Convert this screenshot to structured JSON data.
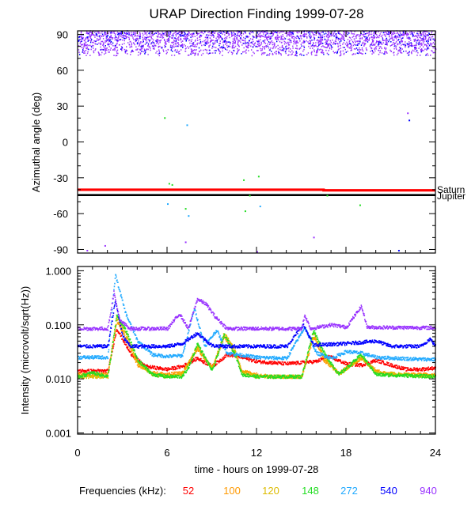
{
  "chart_data": [
    {
      "type": "scatter",
      "title": "URAP Direction Finding  1999-07-28",
      "ylabel": "Azimuthal angle (deg)",
      "xlim": [
        0,
        24
      ],
      "ylim": [
        -93,
        93
      ],
      "yticks": [
        90,
        60,
        30,
        0,
        -30,
        -60,
        -90
      ],
      "reference_lines": [
        {
          "name": "Saturn",
          "y": -40.5,
          "color": "#ff0000"
        },
        {
          "name": "Jupiter",
          "y": -44.5,
          "color": "#000000"
        }
      ],
      "series": [
        {
          "name": "940",
          "color": "#9933ff",
          "band": [
            72,
            93
          ]
        },
        {
          "name": "540",
          "color": "#0000ff",
          "band": [
            72,
            93
          ]
        }
      ],
      "scattered_points": [
        {
          "x": 6.1,
          "y": -35,
          "color": "#22dd22"
        },
        {
          "x": 6.3,
          "y": -36,
          "color": "#22dd22"
        },
        {
          "x": 6.0,
          "y": -52,
          "color": "#22aaff"
        },
        {
          "x": 5.8,
          "y": 20,
          "color": "#22dd22"
        },
        {
          "x": 7.3,
          "y": 14,
          "color": "#22aaff"
        },
        {
          "x": 7.2,
          "y": -56,
          "color": "#22dd22"
        },
        {
          "x": 7.4,
          "y": -62,
          "color": "#22aaff"
        },
        {
          "x": 11.1,
          "y": -32,
          "color": "#22dd22"
        },
        {
          "x": 12.1,
          "y": -29,
          "color": "#22dd22"
        },
        {
          "x": 11.5,
          "y": -45,
          "color": "#22dd22"
        },
        {
          "x": 11.2,
          "y": -58,
          "color": "#22dd22"
        },
        {
          "x": 12.2,
          "y": -54,
          "color": "#22aaff"
        },
        {
          "x": 16.7,
          "y": -45,
          "color": "#22dd22"
        },
        {
          "x": 18.9,
          "y": -53,
          "color": "#22dd22"
        },
        {
          "x": 22.1,
          "y": 24,
          "color": "#9933ff"
        },
        {
          "x": 22.2,
          "y": 18,
          "color": "#0000ff"
        },
        {
          "x": 15.8,
          "y": -80,
          "color": "#9933ff"
        },
        {
          "x": 7.2,
          "y": -84,
          "color": "#9933ff"
        },
        {
          "x": 1.8,
          "y": -87,
          "color": "#9933ff"
        },
        {
          "x": 0.6,
          "y": -91,
          "color": "#9933ff"
        },
        {
          "x": 12.0,
          "y": -92,
          "color": "#9933ff"
        },
        {
          "x": 21.5,
          "y": -91,
          "color": "#0000ff"
        }
      ]
    },
    {
      "type": "line",
      "xlabel": "time - hours on 1999-07-28",
      "ylabel": "Intensity (microvolt/sqrt(Hz))",
      "xlim": [
        0,
        24
      ],
      "ylim": [
        0.00095,
        1.2
      ],
      "yscale": "log",
      "xticks": [
        0,
        6,
        12,
        18,
        24
      ],
      "ytick_labels": [
        "1.000",
        "0.100",
        "0.010",
        "0.001"
      ],
      "ytick_values": [
        1.0,
        0.1,
        0.01,
        0.001
      ],
      "legend_label": "Frequencies (kHz):",
      "series": [
        {
          "name": "52",
          "color": "#ff0000",
          "points": [
            [
              0,
              0.014
            ],
            [
              2,
              0.014
            ],
            [
              2.6,
              0.085
            ],
            [
              3.5,
              0.03
            ],
            [
              4.5,
              0.017
            ],
            [
              6,
              0.015
            ],
            [
              7,
              0.017
            ],
            [
              8,
              0.024
            ],
            [
              9,
              0.017
            ],
            [
              10,
              0.028
            ],
            [
              11,
              0.025
            ],
            [
              12,
              0.021
            ],
            [
              13,
              0.02
            ],
            [
              14,
              0.019
            ],
            [
              15,
              0.02
            ],
            [
              16,
              0.021
            ],
            [
              16.8,
              0.026
            ],
            [
              18,
              0.019
            ],
            [
              19,
              0.018
            ],
            [
              20,
              0.022
            ],
            [
              21,
              0.018
            ],
            [
              22,
              0.015
            ],
            [
              23,
              0.015
            ],
            [
              24,
              0.016
            ]
          ]
        },
        {
          "name": "100",
          "color": "#ff9900",
          "points": [
            [
              0,
              0.012
            ],
            [
              2,
              0.012
            ],
            [
              2.6,
              0.12
            ],
            [
              3.3,
              0.05
            ],
            [
              4,
              0.018
            ],
            [
              5,
              0.013
            ],
            [
              6,
              0.012
            ],
            [
              7,
              0.013
            ],
            [
              8,
              0.035
            ],
            [
              9,
              0.016
            ],
            [
              9.8,
              0.06
            ],
            [
              10.5,
              0.03
            ],
            [
              11,
              0.014
            ],
            [
              12,
              0.012
            ],
            [
              13,
              0.011
            ],
            [
              15,
              0.011
            ],
            [
              15.8,
              0.06
            ],
            [
              16.5,
              0.022
            ],
            [
              17.5,
              0.013
            ],
            [
              19,
              0.024
            ],
            [
              20,
              0.014
            ],
            [
              21,
              0.012
            ],
            [
              24,
              0.012
            ]
          ]
        },
        {
          "name": "120",
          "color": "#ddbb00",
          "points": [
            [
              0,
              0.011
            ],
            [
              2,
              0.011
            ],
            [
              2.6,
              0.14
            ],
            [
              3.3,
              0.06
            ],
            [
              4,
              0.02
            ],
            [
              5,
              0.012
            ],
            [
              6,
              0.011
            ],
            [
              7,
              0.012
            ],
            [
              8,
              0.04
            ],
            [
              9,
              0.015
            ],
            [
              9.8,
              0.07
            ],
            [
              10.5,
              0.035
            ],
            [
              11,
              0.013
            ],
            [
              12,
              0.011
            ],
            [
              15,
              0.011
            ],
            [
              15.8,
              0.07
            ],
            [
              16.5,
              0.025
            ],
            [
              17.5,
              0.012
            ],
            [
              19,
              0.025
            ],
            [
              20,
              0.013
            ],
            [
              24,
              0.011
            ]
          ]
        },
        {
          "name": "148",
          "color": "#22dd22",
          "points": [
            [
              0,
              0.011
            ],
            [
              1,
              0.013
            ],
            [
              2,
              0.011
            ],
            [
              2.6,
              0.15
            ],
            [
              3.3,
              0.07
            ],
            [
              4,
              0.022
            ],
            [
              5,
              0.012
            ],
            [
              6,
              0.011
            ],
            [
              7,
              0.011
            ],
            [
              7.5,
              0.018
            ],
            [
              8,
              0.045
            ],
            [
              9,
              0.014
            ],
            [
              9.8,
              0.065
            ],
            [
              10.5,
              0.03
            ],
            [
              11,
              0.012
            ],
            [
              12,
              0.011
            ],
            [
              15,
              0.011
            ],
            [
              15.8,
              0.08
            ],
            [
              16.5,
              0.03
            ],
            [
              17.5,
              0.012
            ],
            [
              19,
              0.028
            ],
            [
              20,
              0.012
            ],
            [
              24,
              0.011
            ]
          ]
        },
        {
          "name": "272",
          "color": "#22aaff",
          "points": [
            [
              0,
              0.025
            ],
            [
              2,
              0.025
            ],
            [
              2.5,
              0.85
            ],
            [
              3.2,
              0.16
            ],
            [
              4,
              0.05
            ],
            [
              5,
              0.028
            ],
            [
              6,
              0.026
            ],
            [
              7,
              0.027
            ],
            [
              7.8,
              0.2
            ],
            [
              8.5,
              0.04
            ],
            [
              9.3,
              0.08
            ],
            [
              10,
              0.03
            ],
            [
              12,
              0.025
            ],
            [
              14,
              0.024
            ],
            [
              15.2,
              0.09
            ],
            [
              16,
              0.03
            ],
            [
              17,
              0.024
            ],
            [
              18,
              0.032
            ],
            [
              19,
              0.03
            ],
            [
              20,
              0.025
            ],
            [
              23,
              0.023
            ],
            [
              24,
              0.023
            ]
          ]
        },
        {
          "name": "540",
          "color": "#0000ff",
          "points": [
            [
              0,
              0.04
            ],
            [
              2,
              0.04
            ],
            [
              2.5,
              0.28
            ],
            [
              3,
              0.06
            ],
            [
              3.5,
              0.04
            ],
            [
              6,
              0.04
            ],
            [
              7,
              0.045
            ],
            [
              8,
              0.07
            ],
            [
              9,
              0.041
            ],
            [
              10,
              0.04
            ],
            [
              14,
              0.04
            ],
            [
              15.1,
              0.1
            ],
            [
              15.8,
              0.042
            ],
            [
              18,
              0.045
            ],
            [
              20,
              0.05
            ],
            [
              21,
              0.04
            ],
            [
              23,
              0.04
            ],
            [
              23.6,
              0.055
            ],
            [
              24,
              0.04
            ]
          ]
        },
        {
          "name": "940",
          "color": "#9933ff",
          "points": [
            [
              0,
              0.085
            ],
            [
              2,
              0.085
            ],
            [
              2.4,
              0.4
            ],
            [
              2.8,
              0.12
            ],
            [
              3.5,
              0.085
            ],
            [
              6,
              0.085
            ],
            [
              6.8,
              0.16
            ],
            [
              7.4,
              0.085
            ],
            [
              8,
              0.3
            ],
            [
              8.6,
              0.24
            ],
            [
              9.2,
              0.14
            ],
            [
              10,
              0.085
            ],
            [
              15,
              0.085
            ],
            [
              15.2,
              0.15
            ],
            [
              15.6,
              0.085
            ],
            [
              17,
              0.1
            ],
            [
              18,
              0.09
            ],
            [
              19,
              0.22
            ],
            [
              19.4,
              0.09
            ],
            [
              24,
              0.088
            ]
          ]
        }
      ]
    }
  ]
}
